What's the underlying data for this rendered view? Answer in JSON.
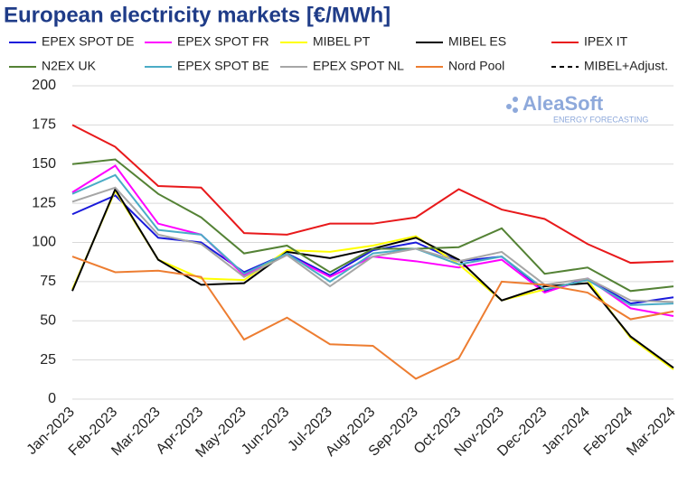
{
  "chart_data": {
    "type": "line",
    "title": "European electricity markets [€/MWh]",
    "logo_name": "AleaSoft",
    "logo_tagline": "ENERGY FORECASTING",
    "categories": [
      "Jan-2023",
      "Feb-2023",
      "Mar-2023",
      "Apr-2023",
      "May-2023",
      "Jun-2023",
      "Jul-2023",
      "Aug-2023",
      "Sep-2023",
      "Oct-2023",
      "Nov-2023",
      "Dec-2023",
      "Jan-2024",
      "Feb-2024",
      "Mar-2024"
    ],
    "ylim": [
      0,
      200
    ],
    "yticks": [
      0,
      25,
      50,
      75,
      100,
      125,
      150,
      175,
      200
    ],
    "grid": true,
    "series": [
      {
        "name": "EPEX SPOT DE",
        "color": "#1a1adb",
        "values": [
          118,
          130,
          103,
          100,
          81,
          93,
          79,
          95,
          100,
          88,
          91,
          69,
          77,
          61,
          65
        ]
      },
      {
        "name": "EPEX SPOT FR",
        "color": "#ff00ff",
        "values": [
          132,
          149,
          112,
          105,
          79,
          92,
          78,
          91,
          88,
          84,
          89,
          68,
          77,
          58,
          53
        ]
      },
      {
        "name": "MIBEL PT",
        "color": "#ffff00",
        "values": [
          70,
          133,
          89,
          77,
          76,
          95,
          94,
          98,
          104,
          86,
          63,
          70,
          76,
          39,
          19
        ]
      },
      {
        "name": "MIBEL ES",
        "color": "#000000",
        "values": [
          69,
          134,
          89,
          73,
          74,
          94,
          90,
          96,
          103,
          89,
          63,
          72,
          74,
          40,
          20
        ]
      },
      {
        "name": "IPEX IT",
        "color": "#e8191b",
        "values": [
          175,
          161,
          136,
          135,
          106,
          105,
          112,
          112,
          116,
          134,
          121,
          115,
          99,
          87,
          88
        ]
      },
      {
        "name": "N2EX UK",
        "color": "#548235",
        "values": [
          150,
          153,
          131,
          116,
          93,
          98,
          81,
          96,
          96,
          97,
          109,
          80,
          84,
          69,
          72
        ]
      },
      {
        "name": "EPEX SPOT BE",
        "color": "#4bacc6",
        "values": [
          131,
          143,
          108,
          105,
          80,
          93,
          75,
          93,
          96,
          86,
          91,
          70,
          76,
          60,
          61
        ]
      },
      {
        "name": "EPEX SPOT NL",
        "color": "#a6a6a6",
        "values": [
          126,
          135,
          105,
          99,
          78,
          92,
          72,
          91,
          96,
          88,
          94,
          73,
          77,
          63,
          62
        ]
      },
      {
        "name": "Nord Pool",
        "color": "#ed7d31",
        "values": [
          91,
          81,
          82,
          78,
          38,
          52,
          35,
          34,
          13,
          26,
          75,
          73,
          68,
          51,
          56
        ]
      },
      {
        "name": "MIBEL+Adjust.",
        "color": "#000000",
        "dash": true,
        "values": [
          null,
          null,
          null,
          null,
          null,
          null,
          null,
          null,
          null,
          null,
          null,
          null,
          null,
          null,
          null
        ]
      }
    ]
  }
}
